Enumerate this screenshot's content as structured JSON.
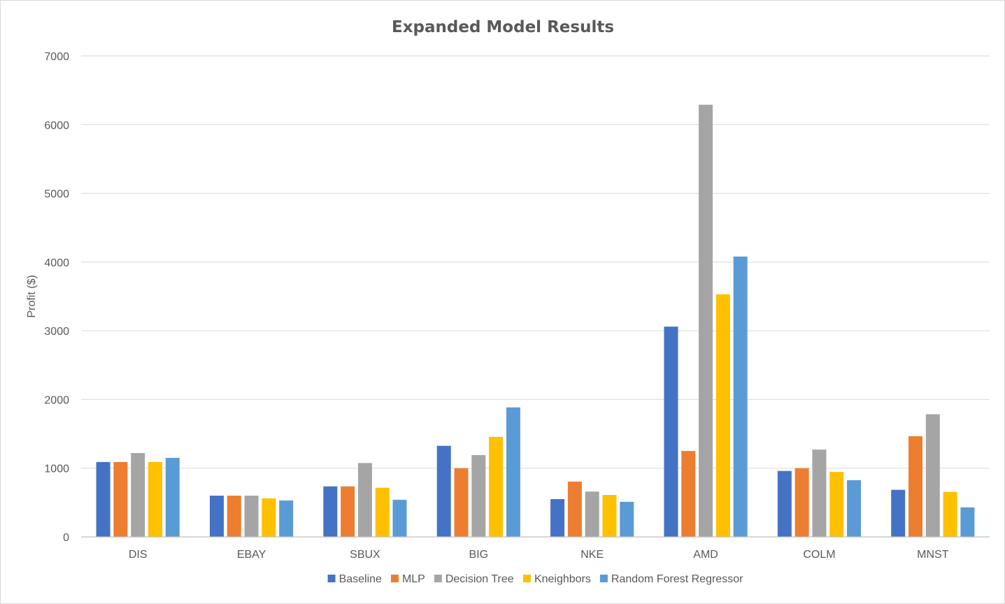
{
  "chart_data": {
    "type": "bar",
    "title": "Expanded Model Results",
    "xlabel": "",
    "ylabel": "Profit ($)",
    "ylim": [
      0,
      7000
    ],
    "yticks": [
      0,
      1000,
      2000,
      3000,
      4000,
      5000,
      6000,
      7000
    ],
    "grid": true,
    "legend_position": "bottom",
    "categories": [
      "DIS",
      "EBAY",
      "SBUX",
      "BIG",
      "NKE",
      "AMD",
      "COLM",
      "MNST"
    ],
    "series": [
      {
        "name": "Baseline",
        "color": "#4472C4",
        "values": [
          1090,
          600,
          735,
          1325,
          550,
          3060,
          960,
          685
        ]
      },
      {
        "name": "MLP",
        "color": "#ED7D31",
        "values": [
          1090,
          600,
          735,
          1000,
          805,
          1250,
          1000,
          1465
        ]
      },
      {
        "name": "Decision Tree",
        "color": "#A5A5A5",
        "values": [
          1220,
          600,
          1075,
          1190,
          660,
          6290,
          1270,
          1785
        ]
      },
      {
        "name": "Kneighbors",
        "color": "#FFC000",
        "values": [
          1090,
          560,
          715,
          1455,
          610,
          3530,
          945,
          655
        ]
      },
      {
        "name": "Random Forest Regressor",
        "color": "#5B9BD5",
        "values": [
          1150,
          530,
          540,
          1885,
          510,
          4080,
          825,
          430
        ]
      }
    ]
  }
}
